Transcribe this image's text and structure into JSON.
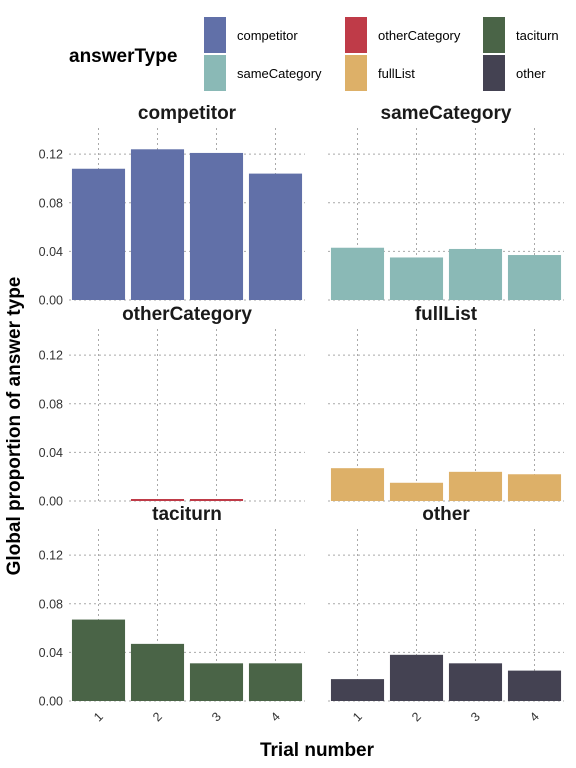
{
  "chart_data": {
    "type": "bar",
    "legend": {
      "title": "answerType",
      "position": "top",
      "entries": [
        {
          "label": "competitor",
          "color": "#6170a8"
        },
        {
          "label": "sameCategory",
          "color": "#8ab9b6"
        },
        {
          "label": "otherCategory",
          "color": "#bf3b48"
        },
        {
          "label": "fullList",
          "color": "#ddb068"
        },
        {
          "label": "taciturn",
          "color": "#4a6447"
        },
        {
          "label": "other",
          "color": "#444252"
        }
      ]
    },
    "xlabel": "Trial number",
    "ylabel": "Global proportion of answer type",
    "categories": [
      "1",
      "2",
      "3",
      "4"
    ],
    "ylim": [
      0,
      0.13
    ],
    "yticks": [
      0.0,
      0.04,
      0.08,
      0.12
    ],
    "ytick_labels": [
      "0.00",
      "0.04",
      "0.08",
      "0.12"
    ],
    "grid": "dotted",
    "facets": [
      {
        "name": "competitor",
        "color": "#6170a8",
        "values": [
          0.108,
          0.124,
          0.121,
          0.104
        ]
      },
      {
        "name": "sameCategory",
        "color": "#8ab9b6",
        "values": [
          0.043,
          0.035,
          0.042,
          0.037
        ]
      },
      {
        "name": "otherCategory",
        "color": "#bf3b48",
        "values": [
          0.0,
          0.0015,
          0.0015,
          0.0
        ]
      },
      {
        "name": "fullList",
        "color": "#ddb068",
        "values": [
          0.027,
          0.015,
          0.024,
          0.022
        ]
      },
      {
        "name": "taciturn",
        "color": "#4a6447",
        "values": [
          0.067,
          0.047,
          0.031,
          0.031
        ]
      },
      {
        "name": "other",
        "color": "#444252",
        "values": [
          0.018,
          0.038,
          0.031,
          0.025
        ]
      }
    ]
  }
}
